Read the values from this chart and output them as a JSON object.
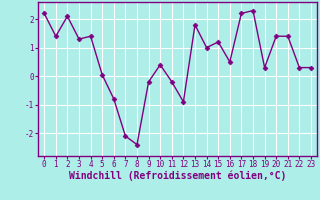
{
  "x": [
    0,
    1,
    2,
    3,
    4,
    5,
    6,
    7,
    8,
    9,
    10,
    11,
    12,
    13,
    14,
    15,
    16,
    17,
    18,
    19,
    20,
    21,
    22,
    23
  ],
  "y": [
    2.2,
    1.4,
    2.1,
    1.3,
    1.4,
    0.05,
    -0.8,
    -2.1,
    -2.4,
    -0.2,
    0.4,
    -0.2,
    -0.9,
    1.8,
    1.0,
    1.2,
    0.5,
    2.2,
    2.3,
    0.3,
    1.4,
    1.4,
    0.3,
    0.3
  ],
  "xlabel": "Windchill (Refroidissement éolien,°C)",
  "line_color": "#800080",
  "marker": "D",
  "marker_size": 2.5,
  "linewidth": 1.0,
  "background_color": "#aeeee8",
  "grid_color": "#ffffff",
  "spine_color": "#800080",
  "ylim": [
    -2.8,
    2.6
  ],
  "xlim": [
    -0.5,
    23.5
  ],
  "yticks": [
    -2,
    -1,
    0,
    1,
    2
  ],
  "xticks": [
    0,
    1,
    2,
    3,
    4,
    5,
    6,
    7,
    8,
    9,
    10,
    11,
    12,
    13,
    14,
    15,
    16,
    17,
    18,
    19,
    20,
    21,
    22,
    23
  ],
  "tick_fontsize": 5.5,
  "xlabel_fontsize": 7.0
}
